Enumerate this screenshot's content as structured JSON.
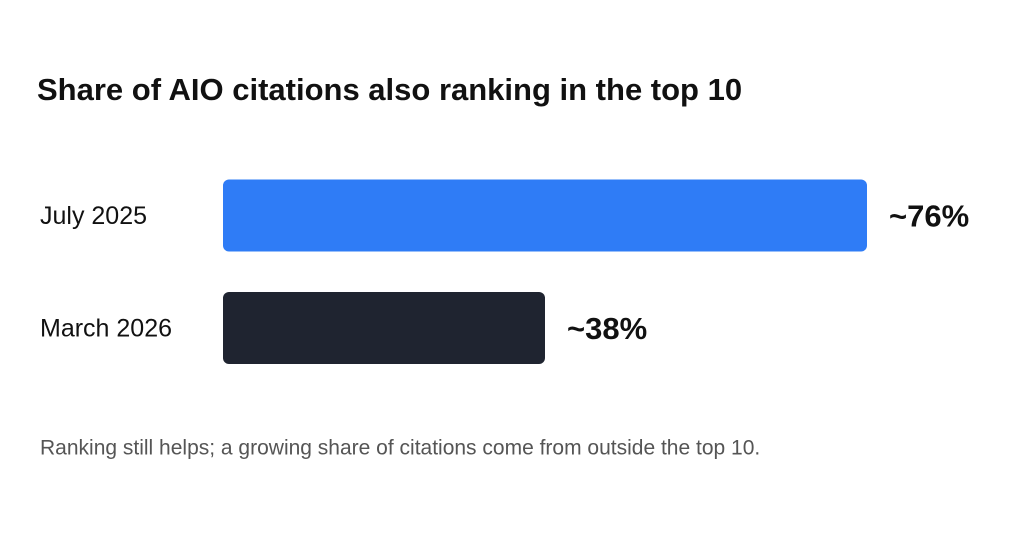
{
  "chart_data": {
    "type": "bar",
    "orientation": "horizontal",
    "title": "Share of AIO citations also ranking in the top 10",
    "categories": [
      "July 2025",
      "March 2026"
    ],
    "values": [
      76,
      38
    ],
    "value_labels": [
      "~76%",
      "~38%"
    ],
    "colors": [
      "#2f7cf6",
      "#1f2430"
    ],
    "note": "Ranking still helps; a growing share of citations come from outside the top 10."
  }
}
